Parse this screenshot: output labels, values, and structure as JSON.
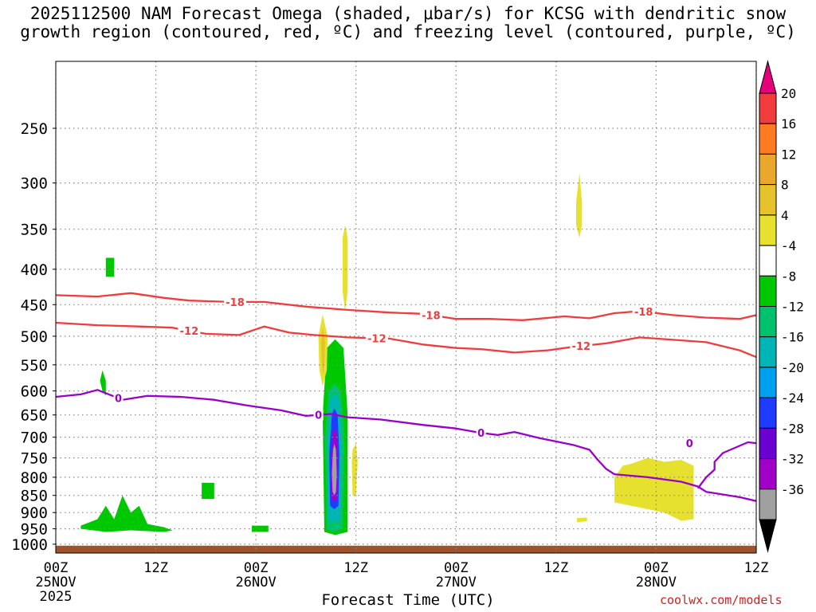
{
  "title": "2025112500 NAM Forecast Omega (shaded, μbar/s) for KCSG with dendritic snow\ngrowth region (contoured, red, ºC) and freezing level (contoured, purple, ºC)",
  "credit": "coolwx.com/models",
  "colors": {
    "dendritic_contour": "#f03c3c",
    "freezing_contour": "#9a00c8",
    "ground": "#a0522d",
    "grid": "#888888"
  },
  "chart_data": {
    "type": "heatmap",
    "xlabel": "Forecast Time (UTC)",
    "x_ticks": [
      {
        "hour": 0,
        "lines": [
          "00Z",
          "25NOV",
          "2025"
        ]
      },
      {
        "hour": 12,
        "lines": [
          "12Z"
        ]
      },
      {
        "hour": 24,
        "lines": [
          "00Z",
          "26NOV"
        ]
      },
      {
        "hour": 36,
        "lines": [
          "12Z"
        ]
      },
      {
        "hour": 48,
        "lines": [
          "00Z",
          "27NOV"
        ]
      },
      {
        "hour": 60,
        "lines": [
          "12Z"
        ]
      },
      {
        "hour": 72,
        "lines": [
          "00Z",
          "28NOV"
        ]
      },
      {
        "hour": 84,
        "lines": [
          "12Z"
        ]
      }
    ],
    "xlim": [
      0,
      84
    ],
    "y_ticks": [
      250,
      300,
      350,
      400,
      450,
      500,
      550,
      600,
      650,
      700,
      750,
      800,
      850,
      900,
      950,
      1000
    ],
    "ylim": [
      200,
      1030
    ],
    "y_scale": "log-pressure",
    "grid": true,
    "colorbar": {
      "labels": [
        "20",
        "16",
        "12",
        "8",
        "4",
        "-4",
        "-8",
        "-12",
        "-16",
        "-20",
        "-24",
        "-28",
        "-32",
        "-36"
      ],
      "colors": [
        "#f03c3c",
        "#ff7a20",
        "#e9a82c",
        "#e6c22d",
        "#e6e02e",
        "#ffffff",
        "#00c800",
        "#00c16c",
        "#00b5b5",
        "#00a0f0",
        "#1e3cff",
        "#6a00d2",
        "#a000c8",
        "#a0a0a0"
      ],
      "top_arrow": "#e6007a",
      "bottom_arrow": "#000000"
    },
    "contours": [
      {
        "label": "-18",
        "color": "#f03c3c",
        "label_hours": [
          21.5,
          45,
          70.5
        ],
        "points": [
          [
            0,
            436
          ],
          [
            5,
            438
          ],
          [
            9,
            433
          ],
          [
            13,
            440
          ],
          [
            16,
            444
          ],
          [
            21,
            446
          ],
          [
            25,
            446
          ],
          [
            30,
            453
          ],
          [
            35,
            458
          ],
          [
            40,
            462
          ],
          [
            44,
            464
          ],
          [
            48,
            472
          ],
          [
            52,
            472
          ],
          [
            56,
            474
          ],
          [
            61,
            468
          ],
          [
            64,
            471
          ],
          [
            67,
            463
          ],
          [
            70,
            460
          ],
          [
            74,
            466
          ],
          [
            78,
            470
          ],
          [
            82,
            472
          ],
          [
            84,
            466
          ]
        ]
      },
      {
        "label": "-12",
        "color": "#f03c3c",
        "label_hours": [
          16,
          38.5,
          63
        ],
        "points": [
          [
            0,
            478
          ],
          [
            5,
            482
          ],
          [
            10,
            484
          ],
          [
            14,
            486
          ],
          [
            18,
            496
          ],
          [
            22,
            498
          ],
          [
            25,
            484
          ],
          [
            28,
            494
          ],
          [
            31,
            498
          ],
          [
            35,
            502
          ],
          [
            40,
            504
          ],
          [
            44,
            514
          ],
          [
            48,
            520
          ],
          [
            51,
            522
          ],
          [
            55,
            528
          ],
          [
            59,
            524
          ],
          [
            62,
            518
          ],
          [
            66,
            512
          ],
          [
            70,
            502
          ],
          [
            74,
            506
          ],
          [
            78,
            510
          ],
          [
            82,
            524
          ],
          [
            84,
            536
          ]
        ]
      },
      {
        "label": "0",
        "color": "#9a00c8",
        "label_hours": [
          7.5,
          31.5,
          51
        ],
        "points": [
          [
            0,
            612
          ],
          [
            3,
            607
          ],
          [
            5,
            598
          ],
          [
            8,
            618
          ],
          [
            11,
            610
          ],
          [
            15,
            612
          ],
          [
            19,
            618
          ],
          [
            23,
            630
          ],
          [
            27,
            640
          ],
          [
            30,
            652
          ],
          [
            33,
            648
          ],
          [
            35,
            655
          ],
          [
            39,
            660
          ],
          [
            44,
            672
          ],
          [
            48,
            680
          ],
          [
            51,
            690
          ],
          [
            53,
            695
          ],
          [
            55,
            688
          ],
          [
            58,
            702
          ],
          [
            62,
            718
          ],
          [
            64,
            730
          ],
          [
            65,
            755
          ],
          [
            66,
            778
          ],
          [
            67,
            792
          ],
          [
            71,
            800
          ],
          [
            75,
            812
          ],
          [
            77,
            825
          ],
          [
            78,
            840
          ],
          [
            82,
            855
          ],
          [
            84,
            866
          ]
        ]
      },
      {
        "label": "0",
        "color": "#9a00c8",
        "label_hours": [
          76
        ],
        "points": [
          [
            77,
            830
          ],
          [
            78,
            800
          ],
          [
            79,
            780
          ],
          [
            79,
            760
          ],
          [
            80,
            738
          ],
          [
            83,
            712
          ],
          [
            84,
            714
          ]
        ]
      }
    ],
    "shaded_regions": [
      {
        "value": -8,
        "pts": [
          [
            3,
            940
          ],
          [
            5,
            920
          ],
          [
            6,
            880
          ],
          [
            7,
            920
          ],
          [
            8,
            850
          ],
          [
            9,
            900
          ],
          [
            10,
            880
          ],
          [
            11,
            935
          ],
          [
            12,
            940
          ],
          [
            13,
            945
          ],
          [
            14,
            955
          ],
          [
            13,
            960
          ],
          [
            9,
            955
          ],
          [
            6,
            960
          ],
          [
            3,
            950
          ]
        ]
      },
      {
        "value": -8,
        "pts": [
          [
            6,
            385
          ],
          [
            7,
            385
          ],
          [
            7,
            410
          ],
          [
            6,
            410
          ]
        ]
      },
      {
        "value": -8,
        "pts": [
          [
            5.6,
            560
          ],
          [
            6,
            580
          ],
          [
            6,
            610
          ],
          [
            5.6,
            600
          ],
          [
            5.3,
            580
          ]
        ]
      },
      {
        "value": -8,
        "pts": [
          [
            17.5,
            815
          ],
          [
            19,
            815
          ],
          [
            19,
            860
          ],
          [
            17.5,
            860
          ]
        ]
      },
      {
        "value": -8,
        "pts": [
          [
            23.5,
            940
          ],
          [
            25.5,
            940
          ],
          [
            25.5,
            960
          ],
          [
            23.5,
            960
          ]
        ]
      },
      {
        "value": -8,
        "pts": [
          [
            32.5,
            520
          ],
          [
            33.5,
            505
          ],
          [
            34.5,
            520
          ],
          [
            35,
            650
          ],
          [
            35,
            960
          ],
          [
            33.5,
            970
          ],
          [
            32.2,
            960
          ],
          [
            32,
            650
          ]
        ]
      },
      {
        "value": -12,
        "pts": [
          [
            32.7,
            600
          ],
          [
            33.4,
            585
          ],
          [
            34.2,
            600
          ],
          [
            34.6,
            700
          ],
          [
            34.4,
            950
          ],
          [
            33.4,
            960
          ],
          [
            32.5,
            950
          ],
          [
            32.3,
            700
          ]
        ]
      },
      {
        "value": -16,
        "pts": [
          [
            32.9,
            620
          ],
          [
            33.4,
            605
          ],
          [
            34,
            620
          ],
          [
            34.3,
            720
          ],
          [
            34.1,
            920
          ],
          [
            33.4,
            930
          ],
          [
            32.7,
            920
          ],
          [
            32.6,
            720
          ]
        ]
      },
      {
        "value": -24,
        "pts": [
          [
            33.1,
            650
          ],
          [
            33.4,
            635
          ],
          [
            33.8,
            650
          ],
          [
            34,
            740
          ],
          [
            33.9,
            880
          ],
          [
            33.4,
            890
          ],
          [
            32.9,
            880
          ],
          [
            32.8,
            740
          ]
        ]
      },
      {
        "value": -32,
        "pts": [
          [
            33.2,
            690
          ],
          [
            33.4,
            680
          ],
          [
            33.7,
            690
          ],
          [
            33.8,
            780
          ],
          [
            33.7,
            860
          ],
          [
            33.4,
            870
          ],
          [
            33.1,
            860
          ],
          [
            33.0,
            780
          ]
        ]
      },
      {
        "value": -36,
        "pts": [
          [
            33.25,
            730
          ],
          [
            33.4,
            715
          ],
          [
            33.6,
            730
          ],
          [
            33.7,
            790
          ],
          [
            33.6,
            840
          ],
          [
            33.4,
            850
          ],
          [
            33.2,
            840
          ],
          [
            33.1,
            790
          ]
        ]
      },
      {
        "value": 4,
        "pts": [
          [
            31.5,
            500
          ],
          [
            32,
            465
          ],
          [
            32.6,
            500
          ],
          [
            32.5,
            560
          ],
          [
            32,
            590
          ],
          [
            31.6,
            560
          ]
        ]
      },
      {
        "value": 8,
        "pts": [
          [
            31.8,
            510
          ],
          [
            32,
            485
          ],
          [
            32.3,
            510
          ],
          [
            32.2,
            555
          ],
          [
            32,
            570
          ],
          [
            31.9,
            550
          ]
        ]
      },
      {
        "value": 4,
        "pts": [
          [
            34.4,
            360
          ],
          [
            34.7,
            345
          ],
          [
            35,
            360
          ],
          [
            35,
            430
          ],
          [
            34.7,
            460
          ],
          [
            34.4,
            430
          ]
        ]
      },
      {
        "value": 4,
        "pts": [
          [
            35.6,
            730
          ],
          [
            36,
            715
          ],
          [
            36.2,
            760
          ],
          [
            36,
            850
          ],
          [
            35.6,
            850
          ],
          [
            35.5,
            760
          ]
        ]
      },
      {
        "value": 4,
        "pts": [
          [
            62.4,
            320
          ],
          [
            62.8,
            290
          ],
          [
            63.1,
            320
          ],
          [
            63.1,
            345
          ],
          [
            62.8,
            360
          ],
          [
            62.4,
            345
          ]
        ]
      },
      {
        "value": 4,
        "pts": [
          [
            67,
            800
          ],
          [
            68,
            770
          ],
          [
            69,
            765
          ],
          [
            71,
            750
          ],
          [
            73,
            760
          ],
          [
            75,
            755
          ],
          [
            76.5,
            770
          ],
          [
            76.5,
            920
          ],
          [
            75,
            925
          ],
          [
            73,
            900
          ],
          [
            71,
            890
          ],
          [
            69,
            880
          ],
          [
            67,
            870
          ]
        ]
      },
      {
        "value": 4,
        "pts": [
          [
            62.5,
            917
          ],
          [
            63.7,
            915
          ],
          [
            63.7,
            927
          ],
          [
            62.5,
            929
          ]
        ]
      }
    ],
    "ground_top_pressure": 1005
  }
}
